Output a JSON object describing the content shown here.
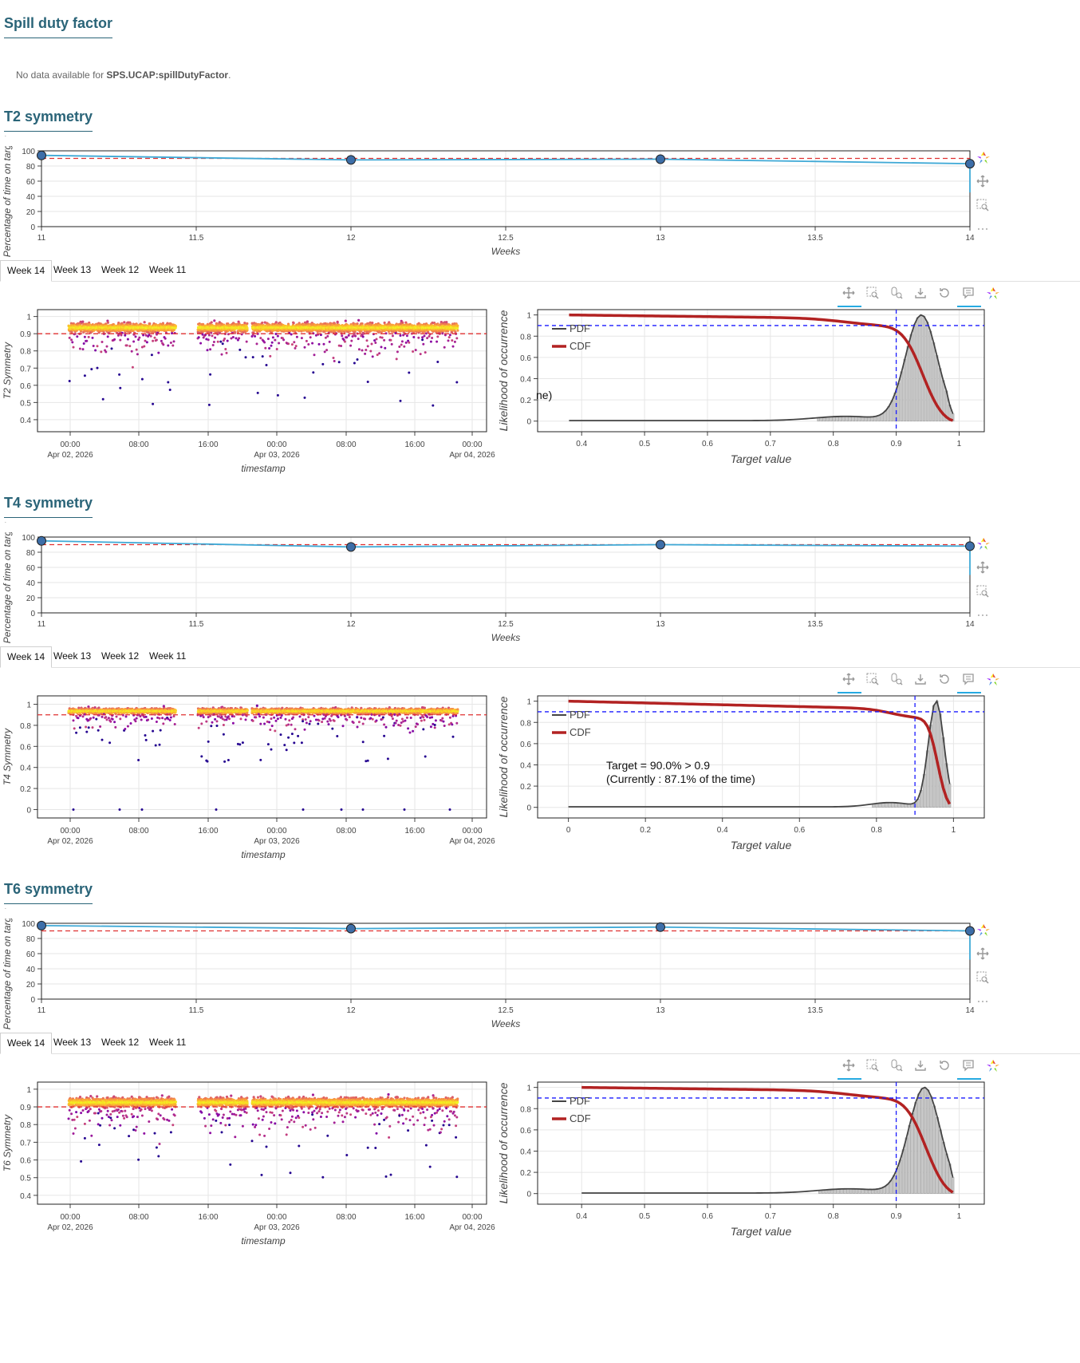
{
  "spill": {
    "title": "Spill duty factor",
    "note_prefix": "No data available for ",
    "note_var": "SPS.UCAP:spillDutyFactor",
    "note_suffix": "."
  },
  "tabs": [
    "Week 14",
    "Week 13",
    "Week 12",
    "Week 11"
  ],
  "toolbar_icons": [
    "pan-icon",
    "box-zoom-icon",
    "wheel-zoom-icon",
    "save-icon",
    "reset-icon",
    "hover-icon",
    "bokeh-logo-icon"
  ],
  "colors": {
    "accent": "#2a6478",
    "line": "#3fa9d6",
    "target": "#e03030",
    "cdf": "#b22222",
    "pdf": "#444444",
    "blue_dash": "#1a1aff"
  },
  "sections": [
    {
      "title": "T2 symmetry",
      "weekly": {
        "type": "line",
        "ylabel": "Percentage of time on target",
        "xlabel": "Weeks",
        "x": [
          11,
          12,
          13,
          14
        ],
        "y": [
          94,
          88,
          89,
          83
        ],
        "target": 90,
        "xticks": [
          "11",
          "11.5",
          "12",
          "12.5",
          "13",
          "13.5",
          "14"
        ],
        "yticks": [
          "0",
          "20",
          "40",
          "60",
          "80",
          "100"
        ]
      },
      "scatter": {
        "type": "scatter",
        "ylabel": "T2 Symmetry",
        "xlabel": "timestamp",
        "yticks": [
          "0.4",
          "0.5",
          "0.6",
          "0.7",
          "0.8",
          "0.9",
          "1"
        ],
        "xticks": [
          [
            "00:00",
            "Apr 02, 2026"
          ],
          [
            "08:00",
            ""
          ],
          [
            "16:00",
            ""
          ],
          [
            "00:00",
            "Apr 03, 2026"
          ],
          [
            "08:00",
            ""
          ],
          [
            "16:00",
            ""
          ],
          [
            "00:00",
            "Apr 04, 2026"
          ]
        ],
        "ymin": 0.33,
        "ymax": 1.04,
        "target": 0.9,
        "band": 0.935,
        "outlier_min": 0.48
      },
      "dist": {
        "type": "area",
        "ylabel": "Likelihood of occurrence",
        "xlabel": "Target value",
        "legend": [
          "PDF",
          "CDF"
        ],
        "xticks": [
          "0.4",
          "0.5",
          "0.6",
          "0.7",
          "0.8",
          "0.9",
          "1"
        ],
        "yticks": [
          "0",
          "0.2",
          "0.4",
          "0.6",
          "0.8",
          "1"
        ],
        "xmin": 0.33,
        "xmax": 1.04,
        "target": 0.9,
        "peak": 0.94,
        "width": 0.025,
        "start": 0.38,
        "annotation": [
          "ne)"
        ]
      }
    },
    {
      "title": "T4 symmetry",
      "weekly": {
        "type": "line",
        "ylabel": "Percentage of time on target",
        "xlabel": "Weeks",
        "x": [
          11,
          12,
          13,
          14
        ],
        "y": [
          95,
          87,
          90,
          88
        ],
        "target": 90,
        "xticks": [
          "11",
          "11.5",
          "12",
          "12.5",
          "13",
          "13.5",
          "14"
        ],
        "yticks": [
          "0",
          "20",
          "40",
          "60",
          "80",
          "100"
        ]
      },
      "scatter": {
        "type": "scatter",
        "ylabel": "T4 Symmetry",
        "xlabel": "timestamp",
        "yticks": [
          "0",
          "0.2",
          "0.4",
          "0.6",
          "0.8",
          "1"
        ],
        "xticks": [
          [
            "00:00",
            "Apr 02, 2026"
          ],
          [
            "08:00",
            ""
          ],
          [
            "16:00",
            ""
          ],
          [
            "00:00",
            "Apr 03, 2026"
          ],
          [
            "08:00",
            ""
          ],
          [
            "16:00",
            ""
          ],
          [
            "00:00",
            "Apr 04, 2026"
          ]
        ],
        "ymin": -0.08,
        "ymax": 1.08,
        "target": 0.9,
        "band": 0.935,
        "outlier_min": 0.45
      },
      "dist": {
        "type": "area",
        "ylabel": "Likelihood of occurrence",
        "xlabel": "Target value",
        "legend": [
          "PDF",
          "CDF"
        ],
        "xticks": [
          "0",
          "0.2",
          "0.4",
          "0.6",
          "0.8",
          "1"
        ],
        "yticks": [
          "0",
          "0.2",
          "0.4",
          "0.6",
          "0.8",
          "1"
        ],
        "xmin": -0.08,
        "xmax": 1.08,
        "target": 0.9,
        "peak": 0.955,
        "width": 0.02,
        "start": 0.0,
        "annotation": [
          "Target = 90.0% > 0.9",
          "(Currently : 87.1% of the time)"
        ]
      }
    },
    {
      "title": "T6 symmetry",
      "weekly": {
        "type": "line",
        "ylabel": "Percentage of time on target",
        "xlabel": "Weeks",
        "x": [
          11,
          12,
          13,
          14
        ],
        "y": [
          97,
          93,
          95,
          90
        ],
        "target": 90,
        "xticks": [
          "11",
          "11.5",
          "12",
          "12.5",
          "13",
          "13.5",
          "14"
        ],
        "yticks": [
          "0",
          "20",
          "40",
          "60",
          "80",
          "100"
        ]
      },
      "scatter": {
        "type": "scatter",
        "ylabel": "T6 Symmetry",
        "xlabel": "timestamp",
        "yticks": [
          "0.4",
          "0.5",
          "0.6",
          "0.7",
          "0.8",
          "0.9",
          "1"
        ],
        "xticks": [
          [
            "00:00",
            "Apr 02, 2026"
          ],
          [
            "08:00",
            ""
          ],
          [
            "16:00",
            ""
          ],
          [
            "00:00",
            "Apr 03, 2026"
          ],
          [
            "08:00",
            ""
          ],
          [
            "16:00",
            ""
          ],
          [
            "00:00",
            "Apr 04, 2026"
          ]
        ],
        "ymin": 0.35,
        "ymax": 1.04,
        "target": 0.9,
        "band": 0.925,
        "outlier_min": 0.5
      },
      "dist": {
        "type": "area",
        "ylabel": "Likelihood of occurrence",
        "xlabel": "Target value",
        "legend": [
          "PDF",
          "CDF"
        ],
        "xticks": [
          "0.4",
          "0.5",
          "0.6",
          "0.7",
          "0.8",
          "0.9",
          "1"
        ],
        "yticks": [
          "0",
          "0.2",
          "0.4",
          "0.6",
          "0.8",
          "1"
        ],
        "xmin": 0.33,
        "xmax": 1.04,
        "target": 0.9,
        "peak": 0.945,
        "width": 0.025,
        "start": 0.4,
        "annotation": []
      }
    }
  ]
}
